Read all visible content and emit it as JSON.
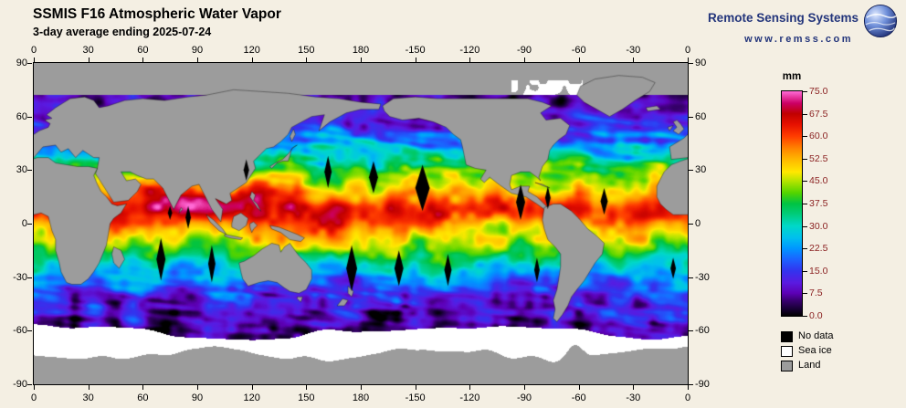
{
  "header": {
    "title": "SSMIS F16 Atmospheric Water Vapor",
    "subtitle": "3-day average ending 2025-07-24"
  },
  "branding": {
    "name": "Remote Sensing Systems",
    "url": "www.remss.com"
  },
  "axes": {
    "lon_labels": [
      "0",
      "30",
      "60",
      "90",
      "120",
      "150",
      "180",
      "-150",
      "-120",
      "-90",
      "-60",
      "-30",
      "0"
    ],
    "lat_labels": [
      "90",
      "60",
      "30",
      "0",
      "-30",
      "-60",
      "-90"
    ]
  },
  "colorbar": {
    "unit": "mm",
    "tick_labels": [
      "75.0",
      "67.5",
      "60.0",
      "52.5",
      "45.0",
      "37.5",
      "30.0",
      "22.5",
      "15.0",
      "7.5",
      "0.0"
    ],
    "min": 0.0,
    "max": 75.0,
    "label_color": "#8b2222",
    "stops": [
      {
        "v": 0,
        "c": "#000000"
      },
      {
        "v": 2,
        "c": "#14002e"
      },
      {
        "v": 5,
        "c": "#38006e"
      },
      {
        "v": 7.5,
        "c": "#5c00b4"
      },
      {
        "v": 11,
        "c": "#5a1ae0"
      },
      {
        "v": 15,
        "c": "#3333ee"
      },
      {
        "v": 19,
        "c": "#1b64ff"
      },
      {
        "v": 22.5,
        "c": "#0096ff"
      },
      {
        "v": 26,
        "c": "#00bfee"
      },
      {
        "v": 30,
        "c": "#00d8c8"
      },
      {
        "v": 34,
        "c": "#00cc7a"
      },
      {
        "v": 37.5,
        "c": "#00c342"
      },
      {
        "v": 41,
        "c": "#52d400"
      },
      {
        "v": 45,
        "c": "#b4e400"
      },
      {
        "v": 48,
        "c": "#ffe800"
      },
      {
        "v": 52.5,
        "c": "#ffb400"
      },
      {
        "v": 56,
        "c": "#ff8200"
      },
      {
        "v": 60,
        "c": "#ff3c00"
      },
      {
        "v": 64,
        "c": "#e61000"
      },
      {
        "v": 67.5,
        "c": "#c00000"
      },
      {
        "v": 71,
        "c": "#cc0066"
      },
      {
        "v": 75,
        "c": "#ff6ad5"
      }
    ]
  },
  "legend": {
    "items": [
      {
        "label": "No data",
        "color": "#000000"
      },
      {
        "label": "Sea ice",
        "color": "#ffffff"
      },
      {
        "label": "Land",
        "color": "#9c9c9c"
      }
    ]
  },
  "colors": {
    "background": "#f4efe3",
    "brand_navy": "#23357b",
    "land_gray": "#9c9c9c",
    "sea_ice_white": "#ffffff",
    "no_data_black": "#000000"
  }
}
